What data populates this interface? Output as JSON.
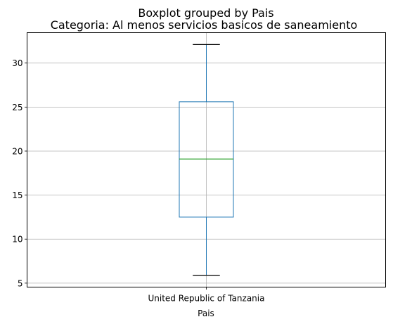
{
  "chart_data": {
    "type": "box",
    "suptitle": "Boxplot grouped by Pais",
    "title": "Categoria: Al menos servicios basicos de saneamiento",
    "xlabel": "Pais",
    "ylabel": "",
    "categories": [
      "United Republic of Tanzania"
    ],
    "boxes": [
      {
        "category": "United Republic of Tanzania",
        "whisker_low": 5.9,
        "q1": 12.5,
        "median": 19.1,
        "q3": 25.6,
        "whisker_high": 32.1
      }
    ],
    "ylim": [
      4.55,
      33.45
    ],
    "yticks": [
      5,
      10,
      15,
      20,
      25,
      30
    ],
    "grid": true,
    "colors": {
      "box": "#1f77b4",
      "median": "#2ca02c",
      "whisker": "#1f77b4",
      "cap": "#000000",
      "grid": "#b0b0b0"
    }
  }
}
